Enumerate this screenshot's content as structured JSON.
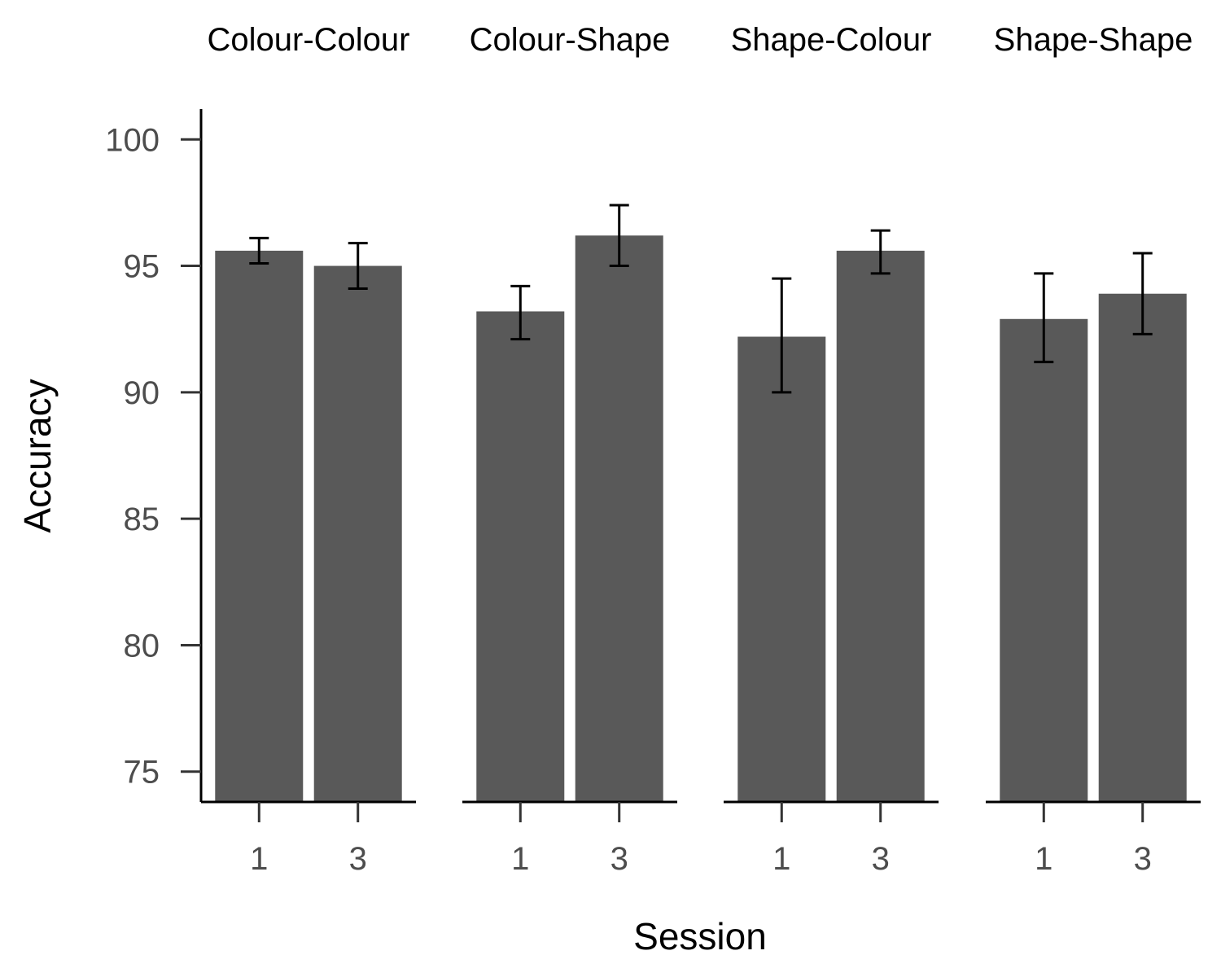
{
  "chart_data": {
    "type": "bar",
    "title": "",
    "xlabel": "Session",
    "ylabel": "Accuracy",
    "ylim": [
      73.8,
      101.2
    ],
    "yticks": [
      75,
      80,
      85,
      90,
      95,
      100
    ],
    "categories": [
      "1",
      "3"
    ],
    "grid": false,
    "legend": "none",
    "colors": {
      "bar": "#595959",
      "errorbar": "#000000",
      "axis": "#000000"
    },
    "panels": [
      {
        "name": "Colour-Colour",
        "values": [
          95.6,
          95.0
        ],
        "errors": [
          [
            95.1,
            96.1
          ],
          [
            94.1,
            95.9
          ]
        ]
      },
      {
        "name": "Colour-Shape",
        "values": [
          93.2,
          96.2
        ],
        "errors": [
          [
            92.1,
            94.2
          ],
          [
            95.0,
            97.4
          ]
        ]
      },
      {
        "name": "Shape-Colour",
        "values": [
          92.2,
          95.6
        ],
        "errors": [
          [
            90.0,
            94.5
          ],
          [
            94.7,
            96.4
          ]
        ]
      },
      {
        "name": "Shape-Shape",
        "values": [
          92.9,
          93.9
        ],
        "errors": [
          [
            91.2,
            94.7
          ],
          [
            92.3,
            95.5
          ]
        ]
      }
    ]
  }
}
